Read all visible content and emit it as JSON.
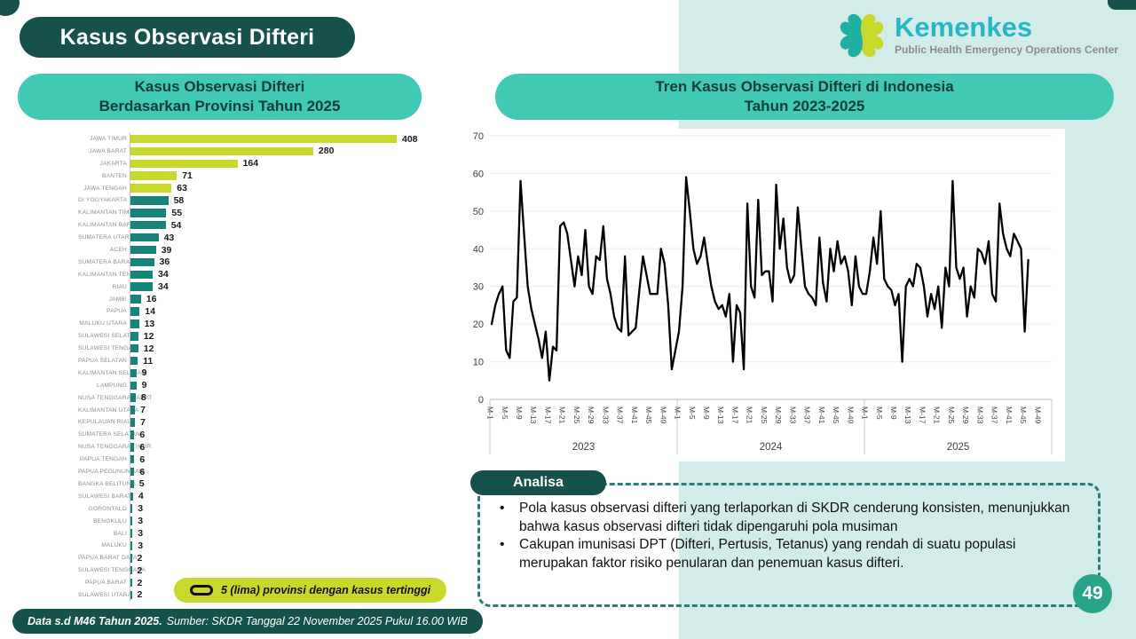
{
  "page": {
    "title": "Kasus Observasi Difteri",
    "number": "49"
  },
  "logo": {
    "name": "Kemenkes",
    "subtitle": "Public Health Emergency Operations Center"
  },
  "footer": {
    "bold": "Data s.d M46 Tahun 2025.",
    "source": "Sumber: SKDR Tanggal 22 November 2025 Pukul 16.00 WIB"
  },
  "analysis": {
    "title": "Analisa",
    "bullets": [
      "Pola kasus observasi difteri yang terlaporkan di SKDR cenderung konsisten, menunjukkan bahwa kasus observasi difteri tidak dipengaruhi pola musiman",
      "Cakupan imunisasi DPT (Difteri, Pertusis, Tetanus) yang rendah di suatu populasi merupakan faktor risiko penularan dan penemuan kasus difteri."
    ]
  },
  "colors": {
    "dark_teal": "#17514c",
    "turquoise": "#41c9b6",
    "mint": "#d2ede9",
    "lime": "#c9d92b",
    "teal_bar": "#17847c",
    "badge_green": "#2aa489",
    "kemenkes_cyan": "#27b6c6",
    "line_black": "#000000"
  },
  "chart_data": [
    {
      "type": "bar",
      "title_line1": "Kasus Observasi Difteri",
      "title_line2": "Berdasarkan Provinsi Tahun 2025",
      "legend": "5 (lima) provinsi dengan kasus tertinggi",
      "highlight_top": 5,
      "xmax": 408,
      "categories": [
        "JAWA TIMUR",
        "JAWA BARAT",
        "JAKARTA",
        "BANTEN",
        "JAWA TENGAH",
        "DI YOGYAKARTA",
        "KALIMANTAN TIMUR",
        "KALIMANTAN BARAT",
        "SUMATERA UTARA",
        "ACEH",
        "SUMATERA BARAT",
        "KALIMANTAN TENGAH",
        "RIAU",
        "JAMBI",
        "PAPUA",
        "MALUKU UTARA",
        "SULAWESI SELATAN",
        "SULAWESI TENGAH",
        "PAPUA SELATAN",
        "KALIMANTAN SELATAN",
        "LAMPUNG",
        "NUSA TENGGARA BARAT",
        "KALIMANTAN UTARA",
        "KEPULAUAN RIAU",
        "SUMATERA SELATAN",
        "NUSA TENGGARA TIMUR",
        "PAPUA TENGAH",
        "PAPUA PEGUNUNGAN",
        "BANGKA BELITUNG",
        "SULAWESI BARAT",
        "GORONTALO",
        "BENGKULU",
        "BALI",
        "MALUKU",
        "PAPUA BARAT DAYA",
        "SULAWESI TENGGARA",
        "PAPUA BARAT",
        "SULAWESI UTARA"
      ],
      "values": [
        408,
        280,
        164,
        71,
        63,
        58,
        55,
        54,
        43,
        39,
        36,
        34,
        34,
        16,
        14,
        13,
        12,
        12,
        11,
        9,
        9,
        8,
        7,
        7,
        6,
        6,
        6,
        6,
        5,
        4,
        3,
        3,
        3,
        3,
        2,
        2,
        2,
        2
      ]
    },
    {
      "type": "line",
      "title_line1": "Tren Kasus Observasi Difteri di Indonesia",
      "title_line2": "Tahun 2023-2025",
      "ylim": [
        0,
        70
      ],
      "y_ticks": [
        0,
        10,
        20,
        30,
        40,
        50,
        60,
        70
      ],
      "weeks_per_year": 52,
      "x_tick_labels": [
        "M-1",
        "M-5",
        "M-9",
        "M-13",
        "M-17",
        "M-21",
        "M-25",
        "M-29",
        "M-33",
        "M-37",
        "M-41",
        "M-45",
        "M-49"
      ],
      "series": [
        {
          "name": "2023",
          "values": [
            20,
            25,
            28,
            30,
            13,
            11,
            26,
            27,
            58,
            44,
            30,
            24,
            20,
            16,
            11,
            18,
            5,
            14,
            13,
            46,
            47,
            44,
            37,
            30,
            38,
            33,
            45,
            30,
            28,
            38,
            37,
            46,
            32,
            28,
            22,
            19,
            18,
            38,
            17,
            18,
            19,
            29,
            38,
            33,
            28,
            28,
            28,
            40,
            36,
            25,
            8,
            13
          ]
        },
        {
          "name": "2024",
          "values": [
            18,
            30,
            59,
            50,
            40,
            36,
            38,
            43,
            36,
            30,
            26,
            24,
            25,
            22,
            28,
            10,
            25,
            23,
            8,
            52,
            30,
            27,
            53,
            33,
            34,
            34,
            26,
            57,
            40,
            48,
            35,
            31,
            33,
            51,
            40,
            30,
            28,
            27,
            25,
            43,
            31,
            26,
            40,
            34,
            42,
            36,
            38,
            34,
            25,
            38,
            30,
            28
          ]
        },
        {
          "name": "2025",
          "values": [
            28,
            34,
            43,
            36,
            50,
            32,
            30,
            29,
            25,
            28,
            10,
            30,
            32,
            30,
            36,
            35,
            30,
            22,
            28,
            24,
            30,
            19,
            35,
            30,
            58,
            35,
            32,
            35,
            22,
            30,
            27,
            40,
            39,
            36,
            42,
            28,
            26,
            52,
            44,
            40,
            38,
            44,
            42,
            40,
            18,
            37
          ]
        }
      ]
    }
  ]
}
